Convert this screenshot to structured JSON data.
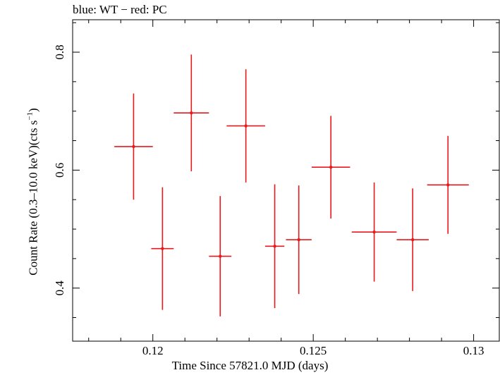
{
  "chart_data": {
    "type": "scatter",
    "title": "blue: WT − red: PC",
    "xlabel": "Time Since 57821.0 MJD (days)",
    "ylabel_main": "Count Rate (0.3–10.0 keV)(cts s",
    "ylabel_sup": "−1",
    "ylabel_tail": ")",
    "xlim": [
      0.1175,
      0.1308
    ],
    "ylim": [
      0.31,
      0.855
    ],
    "xticks": [
      0.12,
      0.125,
      0.13
    ],
    "xtick_labels": [
      "0.12",
      "0.125",
      "0.13"
    ],
    "yticks": [
      0.4,
      0.6,
      0.8
    ],
    "ytick_labels": [
      "0.4",
      "0.6",
      "0.8"
    ],
    "series": [
      {
        "color": "#e8191c",
        "points": [
          {
            "x": 0.1194,
            "xerr": 0.0006,
            "y": 0.64,
            "yerr": 0.09
          },
          {
            "x": 0.1203,
            "xerr": 0.00035,
            "y": 0.467,
            "yerr": 0.104
          },
          {
            "x": 0.1212,
            "xerr": 0.00055,
            "y": 0.697,
            "yerr": 0.099
          },
          {
            "x": 0.1221,
            "xerr": 0.00035,
            "y": 0.454,
            "yerr": 0.102
          },
          {
            "x": 0.1229,
            "xerr": 0.0006,
            "y": 0.675,
            "yerr": 0.096
          },
          {
            "x": 0.1238,
            "xerr": 0.0003,
            "y": 0.471,
            "yerr": 0.105
          },
          {
            "x": 0.12455,
            "xerr": 0.0004,
            "y": 0.482,
            "yerr": 0.092
          },
          {
            "x": 0.12555,
            "xerr": 0.0006,
            "y": 0.605,
            "yerr": 0.087
          },
          {
            "x": 0.1269,
            "xerr": 0.0007,
            "y": 0.495,
            "yerr": 0.084
          },
          {
            "x": 0.1281,
            "xerr": 0.0005,
            "y": 0.482,
            "yerr": 0.087
          },
          {
            "x": 0.1292,
            "xerr": 0.00065,
            "y": 0.575,
            "yerr": 0.083
          }
        ]
      }
    ]
  }
}
